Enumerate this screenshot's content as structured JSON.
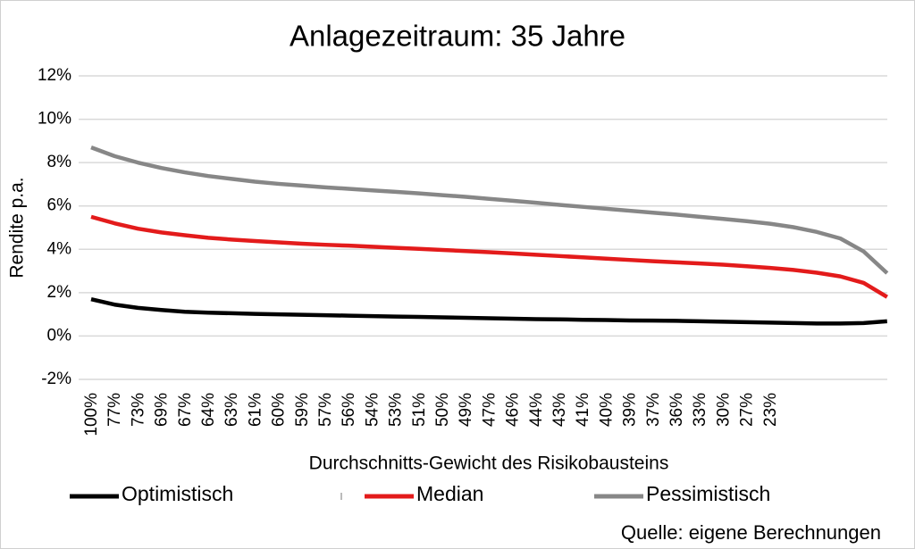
{
  "chart_data": {
    "type": "line",
    "title": "Anlagezeitraum: 35 Jahre",
    "y_label": "Rendite p.a.",
    "x_label": "Durchschnitts-Gewicht des Risikobausteins",
    "source": "Quelle: eigene Berechnungen",
    "categories": [
      "100%",
      "77%",
      "73%",
      "69%",
      "67%",
      "64%",
      "63%",
      "61%",
      "60%",
      "59%",
      "57%",
      "56%",
      "54%",
      "53%",
      "51%",
      "50%",
      "49%",
      "47%",
      "46%",
      "44%",
      "43%",
      "41%",
      "40%",
      "39%",
      "37%",
      "36%",
      "33%",
      "30%",
      "27%",
      "23%",
      null,
      null,
      null,
      null,
      null
    ],
    "series": [
      {
        "name": "Optimistisch",
        "color": "#000000",
        "values": [
          1.7,
          1.45,
          1.3,
          1.2,
          1.12,
          1.08,
          1.05,
          1.02,
          1.0,
          0.98,
          0.96,
          0.94,
          0.92,
          0.9,
          0.88,
          0.86,
          0.84,
          0.82,
          0.8,
          0.78,
          0.77,
          0.75,
          0.74,
          0.72,
          0.71,
          0.7,
          0.68,
          0.66,
          0.64,
          0.62,
          0.6,
          0.58,
          0.58,
          0.6,
          0.68
        ]
      },
      {
        "name": "Median",
        "color": "#e31b1b",
        "values": [
          5.5,
          5.2,
          4.95,
          4.78,
          4.65,
          4.53,
          4.45,
          4.38,
          4.32,
          4.26,
          4.21,
          4.17,
          4.12,
          4.07,
          4.02,
          3.97,
          3.92,
          3.87,
          3.81,
          3.75,
          3.69,
          3.63,
          3.57,
          3.51,
          3.45,
          3.4,
          3.35,
          3.29,
          3.22,
          3.14,
          3.05,
          2.92,
          2.75,
          2.45,
          1.8
        ]
      },
      {
        "name": "Pessimistisch",
        "color": "#878787",
        "values": [
          8.7,
          8.3,
          8.0,
          7.75,
          7.55,
          7.38,
          7.25,
          7.12,
          7.02,
          6.94,
          6.86,
          6.79,
          6.72,
          6.65,
          6.58,
          6.5,
          6.42,
          6.33,
          6.24,
          6.15,
          6.05,
          5.96,
          5.87,
          5.78,
          5.69,
          5.6,
          5.5,
          5.4,
          5.3,
          5.18,
          5.02,
          4.8,
          4.5,
          3.9,
          2.9
        ]
      }
    ],
    "ylim": [
      -2,
      12
    ],
    "yticks": [
      {
        "value": -2,
        "label": "-2%"
      },
      {
        "value": 0,
        "label": "0%"
      },
      {
        "value": 2,
        "label": "2%"
      },
      {
        "value": 4,
        "label": "4%"
      },
      {
        "value": 6,
        "label": "6%"
      },
      {
        "value": 8,
        "label": "8%"
      },
      {
        "value": 10,
        "label": "10%"
      },
      {
        "value": 12,
        "label": "12%"
      }
    ],
    "grid": true,
    "legend": "bottom"
  }
}
